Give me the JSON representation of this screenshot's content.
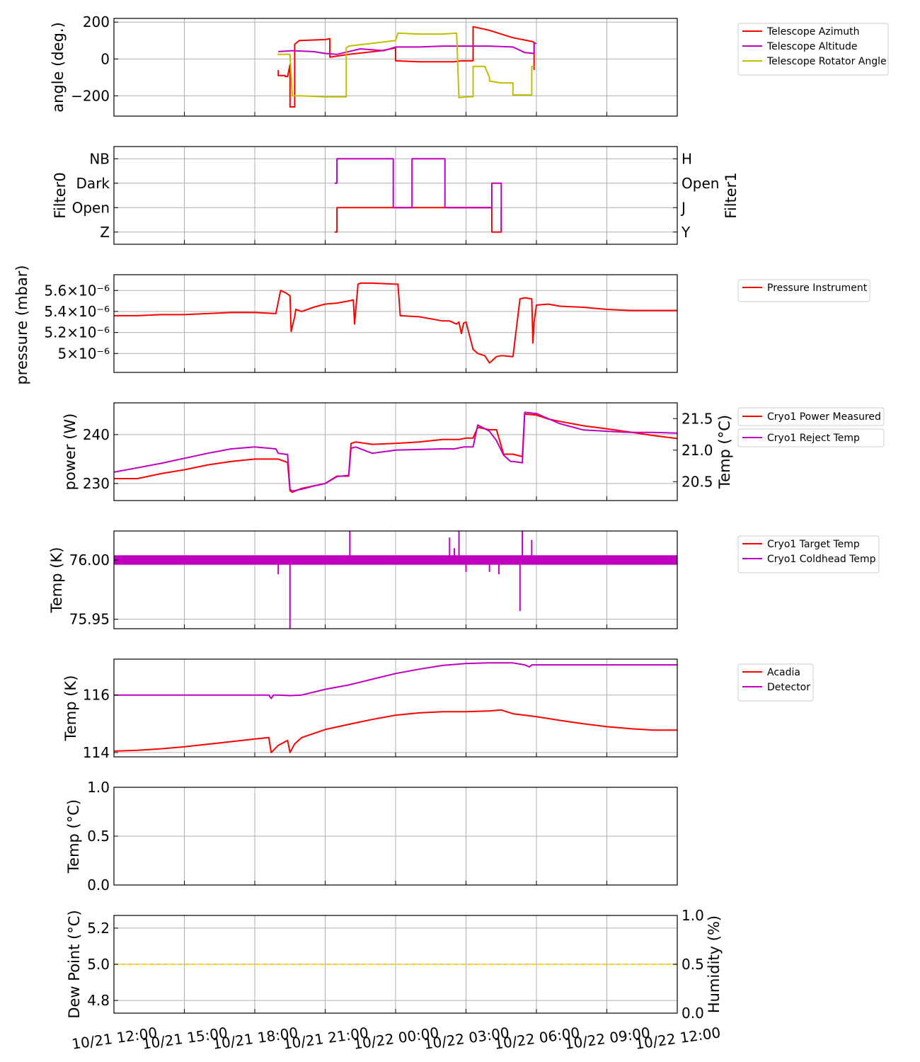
{
  "colors": {
    "red": "#ff0000",
    "magenta": "#bf00bf",
    "olive": "#bfbf00",
    "gold": "#ffd700",
    "grid": "#b0b0b0"
  },
  "chart_data": [
    {
      "id": "angles",
      "type": "line",
      "ylabel": "angle (deg.)",
      "ylim": [
        -310,
        220
      ],
      "yticks": [
        200,
        0,
        -200
      ],
      "ytick_labels": [
        "200",
        "0",
        "−200"
      ],
      "legend": [
        "Telescope Azimuth",
        "Telescope Altitude",
        "Telescope Rotator Angle"
      ],
      "series": [
        {
          "name": "Telescope Azimuth",
          "color": "red",
          "x": [
            19.0,
            19.0,
            19.3,
            19.3,
            19.4,
            19.5,
            19.5,
            19.6,
            19.7,
            19.7,
            19.9,
            21.0,
            21.2,
            21.2,
            22.0,
            23.4,
            24.0,
            24.0,
            25.0,
            26.5,
            26.8,
            27.3,
            27.3,
            28.0,
            29.0,
            29.8,
            29.9,
            29.9
          ],
          "y": [
            -60,
            -90,
            -90,
            -95,
            -95,
            -30,
            -260,
            -260,
            -260,
            80,
            100,
            105,
            110,
            10,
            25,
            45,
            60,
            -10,
            -15,
            -15,
            -10,
            -10,
            175,
            155,
            115,
            95,
            90,
            -60
          ]
        },
        {
          "name": "Telescope Altitude",
          "color": "magenta",
          "x": [
            19.0,
            19.6,
            20.5,
            21.0,
            21.5,
            22.5,
            23.5,
            24.0,
            25.0,
            26.0,
            27.0,
            28.0,
            29.0,
            29.5,
            29.9,
            29.9,
            30.0
          ],
          "y": [
            40,
            45,
            40,
            30,
            25,
            55,
            45,
            65,
            65,
            70,
            70,
            70,
            65,
            35,
            30,
            85,
            85
          ]
        },
        {
          "name": "Telescope Rotator Angle",
          "color": "olive",
          "x": [
            19.0,
            19.0,
            19.5,
            19.5,
            19.6,
            20.0,
            21.0,
            21.9,
            21.9,
            22.0,
            23.0,
            24.0,
            24.1,
            24.1,
            25.0,
            26.0,
            26.6,
            26.7,
            26.7,
            27.0,
            27.3,
            27.3,
            27.8,
            28.0,
            28.0,
            28.5,
            29.0,
            29.0,
            29.8,
            29.8,
            29.9
          ],
          "y": [
            30,
            25,
            25,
            25,
            -200,
            -200,
            -205,
            -205,
            60,
            70,
            85,
            100,
            140,
            140,
            135,
            135,
            140,
            -210,
            -210,
            -205,
            -205,
            -40,
            -40,
            -100,
            -120,
            -130,
            -130,
            -195,
            -195,
            -40,
            -40
          ]
        }
      ]
    },
    {
      "id": "filters",
      "type": "line",
      "ylabel_left": "Filter0",
      "ylabel_right": "Filter1",
      "ylim": [
        -0.5,
        3.5
      ],
      "yticks": [
        0,
        1,
        2,
        3
      ],
      "left_tick_labels": [
        "Z",
        "Open",
        "Dark",
        "NB"
      ],
      "right_tick_labels": [
        "Y",
        "J",
        "Open",
        "H"
      ],
      "series": [
        {
          "name": "Filter0",
          "color": "red",
          "x": [
            21.4,
            21.5,
            21.5,
            28.1,
            28.1,
            28.5,
            28.5
          ],
          "y": [
            0,
            0,
            1,
            1,
            0,
            0,
            1
          ]
        },
        {
          "name": "Filter1",
          "color": "magenta",
          "x": [
            21.4,
            21.5,
            21.5,
            23.9,
            23.9,
            24.7,
            24.7,
            26.1,
            26.1,
            28.1,
            28.1,
            28.5,
            28.5
          ],
          "y": [
            2,
            2,
            3,
            3,
            1,
            1,
            3,
            3,
            1,
            1,
            2,
            2,
            0
          ]
        }
      ]
    },
    {
      "id": "pressure",
      "type": "line",
      "ylabel": "pressure (mbar)",
      "ylim": [
        4.82,
        5.75
      ],
      "yticks": [
        5.6,
        5.4,
        5.2,
        5.0
      ],
      "ytick_labels": [
        "5.6×10⁻⁶",
        "5.4×10⁻⁶",
        "5.2×10⁻⁶",
        "5×10⁻⁶"
      ],
      "legend": [
        "Pressure Instrument"
      ],
      "series": [
        {
          "name": "Pressure Instrument",
          "color": "red",
          "x": [
            12.0,
            13.0,
            14.0,
            15.0,
            16.0,
            17.0,
            18.0,
            18.9,
            19.1,
            19.3,
            19.5,
            19.55,
            19.7,
            19.75,
            20.0,
            20.5,
            21.0,
            21.5,
            22.0,
            22.2,
            22.25,
            22.4,
            22.5,
            23.0,
            24.0,
            24.1,
            24.2,
            25.0,
            25.5,
            26.0,
            26.3,
            26.5,
            26.6,
            26.7,
            26.8,
            26.9,
            27.0,
            27.3,
            27.5,
            27.8,
            28.0,
            28.3,
            28.5,
            29.0,
            29.3,
            29.5,
            29.8,
            29.85,
            29.9,
            30.0,
            30.5,
            31.0,
            32.0,
            33.0,
            34.0,
            35.0,
            36.0
          ],
          "y": [
            5.36,
            5.36,
            5.37,
            5.37,
            5.38,
            5.39,
            5.39,
            5.38,
            5.6,
            5.58,
            5.55,
            5.21,
            5.35,
            5.42,
            5.4,
            5.44,
            5.47,
            5.48,
            5.5,
            5.51,
            5.28,
            5.66,
            5.67,
            5.67,
            5.66,
            5.66,
            5.36,
            5.35,
            5.33,
            5.31,
            5.31,
            5.29,
            5.28,
            5.3,
            5.19,
            5.29,
            5.3,
            5.04,
            5.0,
            4.98,
            4.91,
            4.97,
            4.98,
            4.97,
            5.52,
            5.53,
            5.52,
            5.1,
            5.3,
            5.46,
            5.47,
            5.45,
            5.44,
            5.42,
            5.41,
            5.41,
            5.41
          ]
        }
      ]
    },
    {
      "id": "cryo_power",
      "type": "line",
      "ylabel_left": "power (W)",
      "ylabel_right": "Temp (°C)",
      "ylim_left": [
        226.5,
        246.5
      ],
      "yticks_left": [
        240,
        230
      ],
      "ylim_right": [
        20.2,
        21.75
      ],
      "yticks_right": [
        21.5,
        21.0,
        20.5
      ],
      "legend": [
        "Cryo1 Power Measured",
        "Cryo1 Reject Temp"
      ],
      "series": [
        {
          "name": "Cryo1 Power Measured",
          "color": "red",
          "axis": "left",
          "x": [
            12.0,
            13.0,
            14.0,
            15.0,
            16.0,
            17.0,
            18.0,
            19.0,
            19.4,
            19.5,
            19.6,
            19.8,
            20.0,
            20.5,
            21.0,
            21.5,
            22.0,
            22.1,
            22.3,
            23.0,
            24.0,
            25.0,
            26.0,
            26.7,
            27.0,
            27.3,
            27.5,
            28.0,
            28.3,
            28.6,
            28.9,
            29.0,
            29.4,
            29.5,
            30.0,
            30.5,
            31.0,
            32.0,
            33.0,
            34.0,
            35.0,
            36.0
          ],
          "y": [
            231,
            231,
            232,
            232.8,
            233.8,
            234.5,
            235,
            235.0,
            234.3,
            228.5,
            228.2,
            228.6,
            229.0,
            229.5,
            230.0,
            231.5,
            231.5,
            238.2,
            238.5,
            238.0,
            238.2,
            238.5,
            239.0,
            239.0,
            239.3,
            239.3,
            241.5,
            241.0,
            241.0,
            236.0,
            236.0,
            236.0,
            235.5,
            244.2,
            244.0,
            243.2,
            242.7,
            241.8,
            241.2,
            240.5,
            239.8,
            239.2
          ]
        },
        {
          "name": "Cryo1 Reject Temp",
          "color": "magenta",
          "axis": "right",
          "x": [
            12.0,
            13.0,
            14.0,
            15.0,
            16.0,
            17.0,
            18.0,
            18.9,
            19.0,
            19.4,
            19.5,
            19.6,
            20.0,
            20.5,
            21.0,
            21.5,
            22.0,
            22.1,
            22.3,
            23.0,
            24.0,
            25.0,
            26.0,
            26.5,
            26.9,
            27.3,
            27.5,
            28.0,
            28.3,
            28.6,
            28.9,
            29.0,
            29.4,
            29.5,
            30.0,
            31.0,
            32.0,
            33.0,
            34.0,
            35.0,
            36.0
          ],
          "y": [
            20.65,
            20.72,
            20.79,
            20.87,
            20.95,
            21.02,
            21.05,
            21.02,
            20.95,
            20.93,
            20.38,
            20.35,
            20.38,
            20.43,
            20.47,
            20.58,
            20.6,
            21.03,
            21.05,
            20.95,
            21.0,
            21.01,
            21.02,
            21.02,
            21.05,
            21.05,
            21.4,
            21.3,
            21.15,
            20.92,
            20.82,
            20.82,
            20.8,
            21.6,
            21.58,
            21.42,
            21.32,
            21.3,
            21.28,
            21.28,
            21.27
          ]
        }
      ]
    },
    {
      "id": "cryo_temp",
      "type": "line",
      "ylabel": "Temp (K)",
      "ylim": [
        75.942,
        76.0245
      ],
      "yticks": [
        76.0,
        75.95
      ],
      "ytick_labels": [
        "76.00",
        "75.95"
      ],
      "legend": [
        "Cryo1 Target Temp",
        "Cryo1 Coldhead Temp"
      ],
      "band": [
        75.996,
        76.004
      ],
      "spikes": [
        {
          "x": 19.0,
          "y": 75.988
        },
        {
          "x": 19.5,
          "y": 75.942
        },
        {
          "x": 22.05,
          "y": 76.025
        },
        {
          "x": 26.3,
          "y": 76.019
        },
        {
          "x": 26.5,
          "y": 76.01
        },
        {
          "x": 26.7,
          "y": 76.027
        },
        {
          "x": 27.0,
          "y": 75.99
        },
        {
          "x": 28.0,
          "y": 75.99
        },
        {
          "x": 28.4,
          "y": 75.988
        },
        {
          "x": 29.3,
          "y": 75.957
        },
        {
          "x": 29.4,
          "y": 76.031
        },
        {
          "x": 29.8,
          "y": 76.017
        }
      ],
      "series": [
        {
          "name": "Cryo1 Target Temp",
          "color": "red"
        },
        {
          "name": "Cryo1 Coldhead Temp",
          "color": "magenta"
        }
      ]
    },
    {
      "id": "detector",
      "type": "line",
      "ylabel": "Temp (K)",
      "ylim": [
        113.85,
        117.25
      ],
      "yticks": [
        116,
        114
      ],
      "legend": [
        "Acadia",
        "Detector"
      ],
      "series": [
        {
          "name": "Acadia",
          "color": "red",
          "x": [
            12.0,
            13.0,
            14.0,
            15.0,
            16.0,
            17.0,
            18.0,
            18.6,
            18.7,
            19.0,
            19.3,
            19.4,
            19.5,
            19.7,
            20.0,
            21.0,
            22.0,
            23.0,
            24.0,
            25.0,
            26.0,
            27.0,
            28.0,
            28.5,
            29.0,
            30.0,
            31.0,
            32.0,
            33.0,
            34.0,
            35.0,
            36.0
          ],
          "y": [
            114.05,
            114.08,
            114.13,
            114.2,
            114.29,
            114.38,
            114.47,
            114.52,
            114.0,
            114.25,
            114.38,
            114.42,
            114.0,
            114.3,
            114.52,
            114.8,
            114.98,
            115.15,
            115.3,
            115.38,
            115.42,
            115.42,
            115.45,
            115.48,
            115.35,
            115.25,
            115.12,
            115.0,
            114.9,
            114.83,
            114.78,
            114.78
          ]
        },
        {
          "name": "Detector",
          "color": "magenta",
          "x": [
            12.0,
            14.0,
            16.0,
            18.0,
            18.6,
            18.7,
            18.8,
            19.0,
            19.5,
            20.0,
            21.0,
            22.0,
            23.0,
            24.0,
            25.0,
            26.0,
            27.0,
            28.0,
            29.0,
            29.5,
            29.7,
            29.8,
            30.0,
            31.0,
            32.0,
            33.0,
            34.0,
            36.0
          ],
          "y": [
            116.0,
            116.0,
            116.0,
            116.0,
            116.0,
            115.88,
            116.0,
            116.0,
            115.98,
            116.0,
            116.2,
            116.35,
            116.55,
            116.75,
            116.9,
            117.03,
            117.1,
            117.12,
            117.12,
            117.05,
            116.98,
            117.05,
            117.05,
            117.05,
            117.05,
            117.05,
            117.05,
            117.05
          ]
        }
      ]
    },
    {
      "id": "ambient",
      "type": "line",
      "ylabel": "Temp (°C)",
      "ylim": [
        0.0,
        1.0
      ],
      "yticks": [
        1.0,
        0.5,
        0.0
      ],
      "ytick_labels": [
        "1.0",
        "0.5",
        "0.0"
      ],
      "series": []
    },
    {
      "id": "dewpoint",
      "type": "line",
      "ylabel_left": "Dew Point (°C)",
      "ylabel_right": "Humidity (%)",
      "ylim_left": [
        4.73,
        5.27
      ],
      "yticks_left": [
        5.2,
        5.0,
        4.8
      ],
      "ytick_labels_left": [
        "5.2",
        "5.0",
        "4.8"
      ],
      "ylim_right": [
        0.0,
        1.0
      ],
      "yticks_right": [
        1.0,
        0.5,
        0.0
      ],
      "ytick_labels_right": [
        "1.0",
        "0.5",
        "0.0"
      ],
      "series": [
        {
          "name": "Dew Point",
          "color": "gold",
          "dashed": true,
          "x": [
            12.0,
            36.0
          ],
          "y": [
            5.0,
            5.0
          ]
        }
      ]
    }
  ],
  "x_axis": {
    "unit": "hours since 10/21 00:00",
    "xlim": [
      12.0,
      36.0
    ],
    "ticks": [
      12,
      15,
      18,
      21,
      24,
      27,
      30,
      33,
      36
    ],
    "tick_labels": [
      "10/21 12:00",
      "10/21 15:00",
      "10/21 18:00",
      "10/21 21:00",
      "10/22 00:00",
      "10/22 03:00",
      "10/22 06:00",
      "10/22 09:00",
      "10/22 12:00"
    ]
  }
}
